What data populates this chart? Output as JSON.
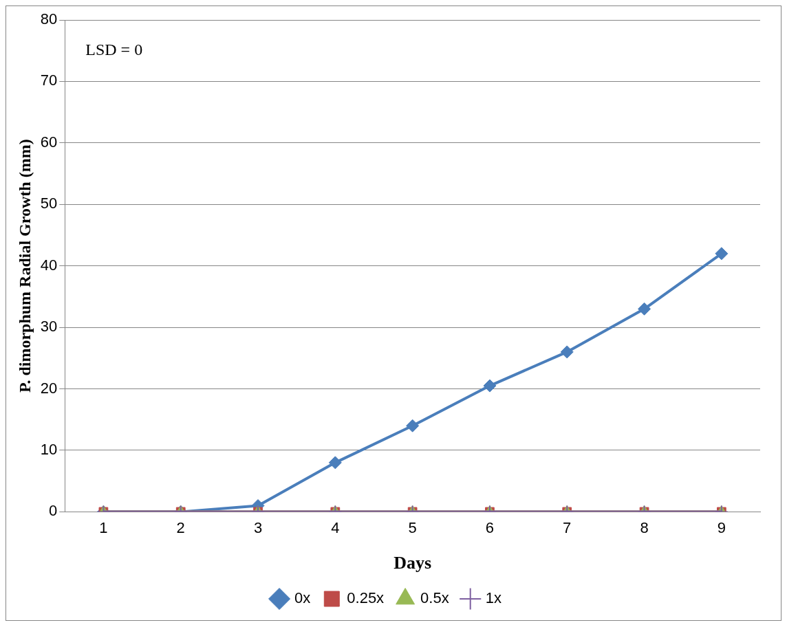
{
  "chart_data": {
    "type": "line",
    "xlabel": "Days",
    "ylabel": "P. dimorphum Radial Growth (mm)",
    "annotations": [
      "LSD = 0"
    ],
    "categories": [
      "1",
      "2",
      "3",
      "4",
      "5",
      "6",
      "7",
      "8",
      "9"
    ],
    "ylim": [
      0,
      80
    ],
    "yticks": [
      0,
      10,
      20,
      30,
      40,
      50,
      60,
      70,
      80
    ],
    "grid": "y",
    "legend": "bottom",
    "series": [
      {
        "name": "0x",
        "color": "#4a7ebb",
        "marker": "diamond",
        "values": [
          0,
          0,
          1,
          8,
          14,
          20.5,
          26,
          33,
          42
        ]
      },
      {
        "name": "0.25x",
        "color": "#be4b48",
        "marker": "square",
        "values": [
          0,
          0,
          0,
          0,
          0,
          0,
          0,
          0,
          0
        ]
      },
      {
        "name": "0.5x",
        "color": "#98b954",
        "marker": "triangle",
        "values": [
          0,
          0,
          0,
          0,
          0,
          0,
          0,
          0,
          0
        ]
      },
      {
        "name": "1x",
        "color": "#7d5fa0",
        "marker": "cross",
        "values": [
          0,
          0,
          0,
          0,
          0,
          0,
          0,
          0,
          0
        ]
      }
    ]
  }
}
